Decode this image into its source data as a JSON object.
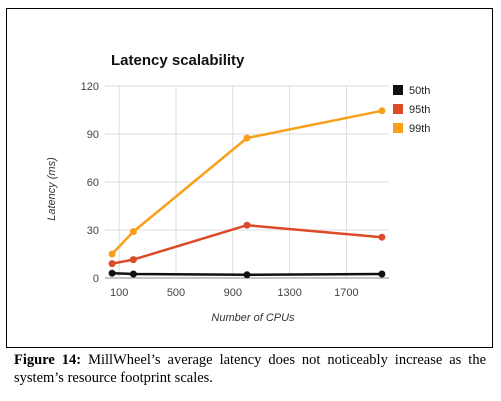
{
  "figure": {
    "caption_label": "Figure 14:",
    "caption_text": "MillWheel’s average latency does not noticeably increase as the system’s resource footprint scales."
  },
  "chart_data": {
    "type": "line",
    "title": "Latency scalability",
    "xlabel": "Number of CPUs",
    "ylabel": "Latency (ms)",
    "xlim": [
      0,
      2000
    ],
    "ylim": [
      0,
      120
    ],
    "x_ticks": [
      100,
      500,
      900,
      1300,
      1700
    ],
    "y_ticks": [
      0,
      30,
      60,
      90,
      120
    ],
    "grid": true,
    "legend_position": "top-right",
    "x": [
      50,
      200,
      1000,
      1950
    ],
    "series": [
      {
        "name": "50th",
        "color": "#111111",
        "values": [
          3,
          2.5,
          2,
          2.5
        ]
      },
      {
        "name": "95th",
        "color": "#dc4a2a",
        "values": [
          9,
          11.5,
          33,
          25.5
        ]
      },
      {
        "name": "99th",
        "color": "#f8a01c",
        "values": [
          15,
          29,
          87.5,
          104.5
        ]
      }
    ]
  }
}
